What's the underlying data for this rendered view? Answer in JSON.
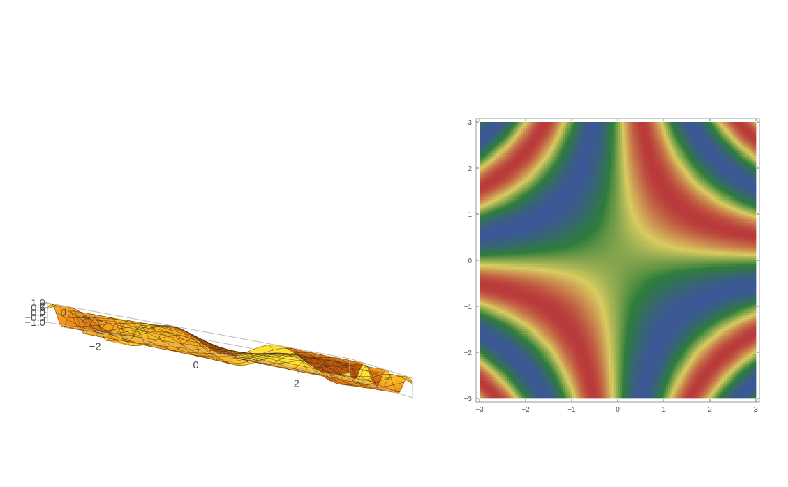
{
  "chart_data": [
    {
      "type": "surface3d",
      "function": "z = sin(x*y)",
      "x_range": [
        -3,
        3
      ],
      "y_range": [
        -3,
        3
      ],
      "z_range": [
        -1.0,
        1.0
      ],
      "mesh_lines": 15,
      "x_ticks": [
        "−2",
        "0",
        "2"
      ],
      "y_ticks": [
        "−2",
        "0",
        "2"
      ],
      "z_ticks": [
        "−1.0",
        "−0.5",
        "0.0",
        "0.5",
        "1.0"
      ],
      "colors": {
        "low": "#c25a10",
        "mid": "#f59a1e",
        "high": "#ffe135",
        "mesh": "#3a2a10",
        "box": "#bbbbbb"
      }
    },
    {
      "type": "heatmap",
      "function": "z = sin(x*y)",
      "x_range": [
        -3,
        3
      ],
      "y_range": [
        -3,
        3
      ],
      "x_ticks": [
        "−3",
        "−2",
        "−1",
        "0",
        "1",
        "2",
        "3"
      ],
      "y_ticks": [
        "−3",
        "−2",
        "−1",
        "0",
        "1",
        "2",
        "3"
      ],
      "colormap": [
        "#3c5796",
        "#2e7d3a",
        "#d9cc60",
        "#b93a3a"
      ],
      "frame_color": "#999999"
    }
  ]
}
